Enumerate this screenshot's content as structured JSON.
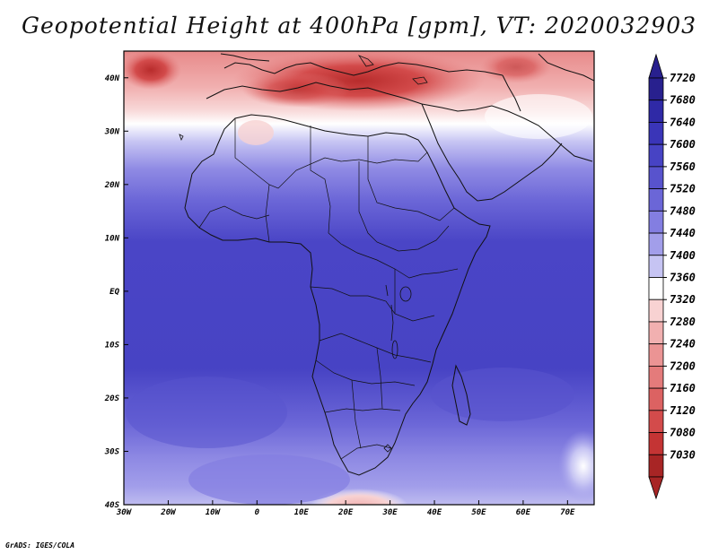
{
  "title": "Geopotential Height at 400hPa [gpm], VT: 2020032903",
  "credit": "GrADS: IGES/COLA",
  "map": {
    "lon_range": [
      -30,
      76
    ],
    "lat_range": [
      -40,
      45
    ],
    "x_ticks": [
      {
        "lon": -30,
        "label": "30W"
      },
      {
        "lon": -20,
        "label": "20W"
      },
      {
        "lon": -10,
        "label": "10W"
      },
      {
        "lon": 0,
        "label": "0"
      },
      {
        "lon": 10,
        "label": "10E"
      },
      {
        "lon": 20,
        "label": "20E"
      },
      {
        "lon": 30,
        "label": "30E"
      },
      {
        "lon": 40,
        "label": "40E"
      },
      {
        "lon": 50,
        "label": "50E"
      },
      {
        "lon": 60,
        "label": "60E"
      },
      {
        "lon": 70,
        "label": "70E"
      }
    ],
    "y_ticks": [
      {
        "lat": 40,
        "label": "40N"
      },
      {
        "lat": 30,
        "label": "30N"
      },
      {
        "lat": 20,
        "label": "20N"
      },
      {
        "lat": 10,
        "label": "10N"
      },
      {
        "lat": 0,
        "label": "EQ"
      },
      {
        "lat": -10,
        "label": "10S"
      },
      {
        "lat": -20,
        "label": "20S"
      },
      {
        "lat": -30,
        "label": "30S"
      },
      {
        "lat": -40,
        "label": "40S"
      }
    ]
  },
  "colorbar": {
    "levels": [
      {
        "label": "7720",
        "color": "#28208e"
      },
      {
        "label": "7680",
        "color": "#2f29a6"
      },
      {
        "label": "7640",
        "color": "#3a35b8"
      },
      {
        "label": "7600",
        "color": "#4743c4"
      },
      {
        "label": "7560",
        "color": "#5853cd"
      },
      {
        "label": "7520",
        "color": "#6b66d7"
      },
      {
        "label": "7480",
        "color": "#837ee1"
      },
      {
        "label": "7440",
        "color": "#a29eea"
      },
      {
        "label": "7400",
        "color": "#c6c4f3"
      },
      {
        "label": "7360",
        "color": "#ffffff"
      },
      {
        "label": "7320",
        "color": "#f8d2d2"
      },
      {
        "label": "7280",
        "color": "#f1b0b0"
      },
      {
        "label": "7240",
        "color": "#eb9494"
      },
      {
        "label": "7200",
        "color": "#e47b7b"
      },
      {
        "label": "7160",
        "color": "#dc6262"
      },
      {
        "label": "7120",
        "color": "#d34b4b"
      },
      {
        "label": "7080",
        "color": "#c43434"
      },
      {
        "label": "7030",
        "color": "#a82525"
      }
    ],
    "top_arrow_color": "#28208e",
    "bottom_arrow_color": "#a82525"
  }
}
